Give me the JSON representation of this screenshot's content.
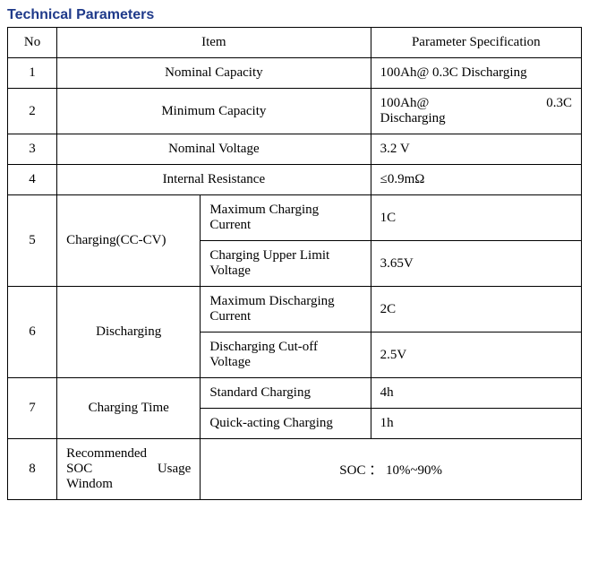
{
  "title": "Technical Parameters",
  "headers": {
    "no": "No",
    "item": "Item",
    "spec": "Parameter Specification"
  },
  "rows": {
    "r1": {
      "no": "1",
      "item": "Nominal Capacity",
      "value": "100Ah@ 0.3C Discharging"
    },
    "r2": {
      "no": "2",
      "item": "Minimum Capacity",
      "value_line1": "100Ah@",
      "value_line2": "0.3C",
      "value_line3": "Discharging"
    },
    "r3": {
      "no": "3",
      "item": "Nominal Voltage",
      "value": "3.2 V"
    },
    "r4": {
      "no": "4",
      "item": "Internal Resistance",
      "value": "≤0.9mΩ"
    },
    "r5": {
      "no": "5",
      "item": "Charging(CC-CV)",
      "sub1": {
        "label": "Maximum Charging Current",
        "value": "1C"
      },
      "sub2": {
        "label": "Charging Upper Limit Voltage",
        "value": "3.65V"
      }
    },
    "r6": {
      "no": "6",
      "item": "Discharging",
      "sub1": {
        "label": "Maximum Discharging Current",
        "value": "2C"
      },
      "sub2": {
        "label": "Discharging Cut-off Voltage",
        "value": "2.5V"
      }
    },
    "r7": {
      "no": "7",
      "item": "Charging Time",
      "sub1": {
        "label": "Standard Charging",
        "value": "4h"
      },
      "sub2": {
        "label": "Quick-acting Charging",
        "value": "1h"
      }
    },
    "r8": {
      "no": "8",
      "item_line1": "Recommended",
      "item_line2a": "SOC",
      "item_line2b": "Usage",
      "item_line3": "Windom",
      "value": "SOC ： 10%~90%"
    }
  }
}
